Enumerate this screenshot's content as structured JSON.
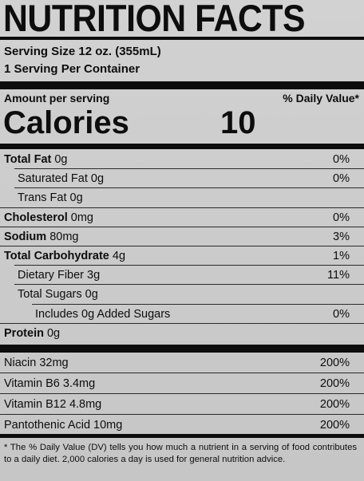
{
  "title": "NUTRITION FACTS",
  "serving_size": "Serving Size 12 oz.  (355mL)",
  "servings_per_container": "1 Serving Per Container",
  "amount_per_serving": "Amount per serving",
  "daily_value_header": "% Daily Value*",
  "calories_label": "Calories",
  "calories_value": "10",
  "nutrients": [
    {
      "bold": "Total Fat",
      "rest": " 0g",
      "dv": "0%",
      "indent": 0
    },
    {
      "bold": "",
      "rest": "Saturated Fat 0g",
      "dv": "0%",
      "indent": 1
    },
    {
      "bold": "",
      "rest": "Trans Fat 0g",
      "dv": "",
      "indent": 1
    },
    {
      "bold": "Cholesterol",
      "rest": " 0mg",
      "dv": "0%",
      "indent": 0
    },
    {
      "bold": "Sodium",
      "rest": " 80mg",
      "dv": "3%",
      "indent": 0
    },
    {
      "bold": "Total Carbohydrate",
      "rest": " 4g",
      "dv": "1%",
      "indent": 0
    },
    {
      "bold": "",
      "rest": "Dietary Fiber 3g",
      "dv": "11%",
      "indent": 1
    },
    {
      "bold": "",
      "rest": "Total Sugars 0g",
      "dv": "",
      "indent": 1
    },
    {
      "bold": "",
      "rest": "Includes 0g Added Sugars",
      "dv": "0%",
      "indent": 2
    },
    {
      "bold": "Protein",
      "rest": " 0g",
      "dv": "",
      "indent": 0
    }
  ],
  "vitamins": [
    {
      "name": "Niacin 32mg",
      "dv": "200%"
    },
    {
      "name": "Vitamin B6 3.4mg",
      "dv": "200%"
    },
    {
      "name": "Vitamin B12 4.8mg",
      "dv": "200%"
    },
    {
      "name": "Pantothenic Acid 10mg",
      "dv": "200%"
    }
  ],
  "footnote": "* The % Daily Value (DV) tells you how much a nutrient in a serving of food contributes to a daily diet. 2,000 calories a day is used for general nutrition advice."
}
